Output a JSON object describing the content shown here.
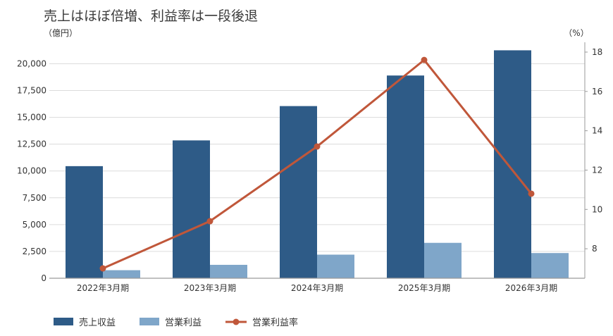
{
  "title": "売上はほぼ倍増、利益率は一段後退",
  "colors": {
    "sales": "#2e5b87",
    "op_profit": "#7fa6c9",
    "margin": "#c0573a",
    "grid": "#dcdcdc",
    "axis": "#9a9a9a"
  },
  "chart_data": {
    "type": "bar",
    "title": "売上はほぼ倍増、利益率は一段後退",
    "categories": [
      "2022年3月期",
      "2023年3月期",
      "2024年3月期",
      "2025年3月期",
      "2026年3月期"
    ],
    "y_left": {
      "unit_label": "（億円）",
      "range": [
        0,
        22000
      ],
      "ticks": [
        0,
        2500,
        5000,
        7500,
        10000,
        12500,
        15000,
        17500,
        20000
      ],
      "tick_labels": [
        "0",
        "2,500",
        "5,000",
        "7,500",
        "10,000",
        "12,500",
        "15,000",
        "17,500",
        "20,000"
      ]
    },
    "y_right": {
      "unit_label": "（%）",
      "range": [
        6.5,
        18.5
      ],
      "ticks": [
        8,
        10,
        12,
        14,
        16,
        18
      ],
      "tick_labels": [
        "8",
        "10",
        "12",
        "14",
        "16",
        "18"
      ]
    },
    "grid": true,
    "legend_position": "bottom-left",
    "series": [
      {
        "name": "売上収益",
        "type": "bar",
        "axis": "left",
        "values": [
          10450,
          12850,
          16050,
          18900,
          21250
        ]
      },
      {
        "name": "営業利益",
        "type": "bar",
        "axis": "left",
        "values": [
          750,
          1250,
          2200,
          3300,
          2350
        ]
      },
      {
        "name": "営業利益率",
        "type": "line",
        "axis": "right",
        "values": [
          7.0,
          9.4,
          13.2,
          17.6,
          10.8
        ]
      }
    ]
  }
}
